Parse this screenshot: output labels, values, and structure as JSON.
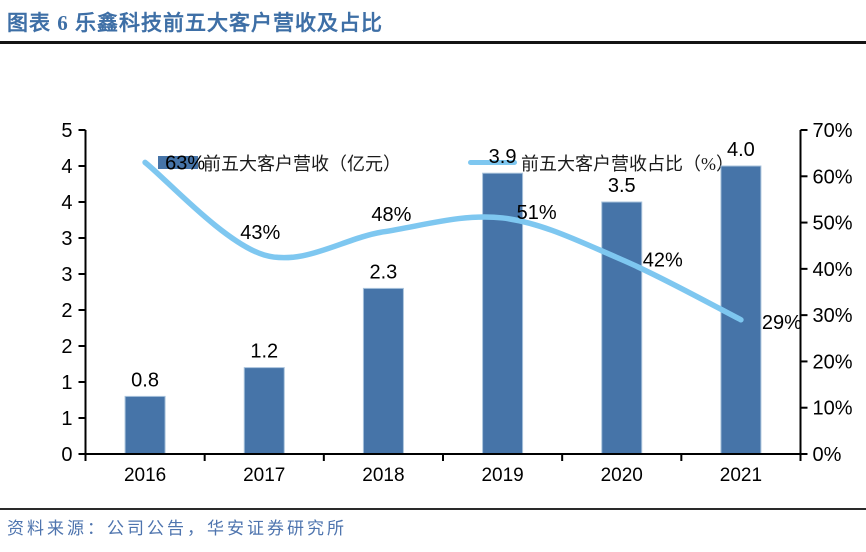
{
  "title": "图表 6 乐鑫科技前五大客户营收及占比",
  "source": "资料来源：公司公告，华安证券研究所",
  "legend": {
    "bar_label": "前五大客户营收（亿元）",
    "line_label": "前五大客户营收占比（%）"
  },
  "colors": {
    "bar": "#4674A8",
    "bar_edge": "#A9C3DC",
    "line": "#7EC7F0",
    "title_text": "#3E6FA6",
    "source_text": "#4E74AE",
    "axis": "#000000"
  },
  "chart_data": {
    "type": "bar",
    "subtype": "bar+line combo, dual axis",
    "categories": [
      "2016",
      "2017",
      "2018",
      "2019",
      "2020",
      "2021"
    ],
    "series": [
      {
        "name": "前五大客户营收（亿元）",
        "type": "bar",
        "axis": "left",
        "values": [
          0.8,
          1.2,
          2.3,
          3.9,
          3.5,
          4.0
        ],
        "labels": [
          "0.8",
          "1.2",
          "2.3",
          "3.9",
          "3.5",
          "4.0"
        ]
      },
      {
        "name": "前五大客户营收占比（%）",
        "type": "line",
        "axis": "right",
        "values": [
          63,
          43,
          48,
          51,
          42,
          29
        ],
        "labels": [
          "63%",
          "43%",
          "48%",
          "51%",
          "42%",
          "29%"
        ]
      }
    ],
    "left_axis": {
      "min": 0,
      "max": 4.5,
      "step": 0.5,
      "tick_labels_bottom_to_top": [
        "0",
        "1",
        "1",
        "2",
        "2",
        "3",
        "3",
        "4",
        "4",
        "5"
      ]
    },
    "right_axis": {
      "min": 0,
      "max": 70,
      "step": 10,
      "tick_labels_bottom_to_top": [
        "0%",
        "10%",
        "20%",
        "30%",
        "40%",
        "50%",
        "60%",
        "70%"
      ]
    },
    "grid": false,
    "legend_position": "top"
  }
}
